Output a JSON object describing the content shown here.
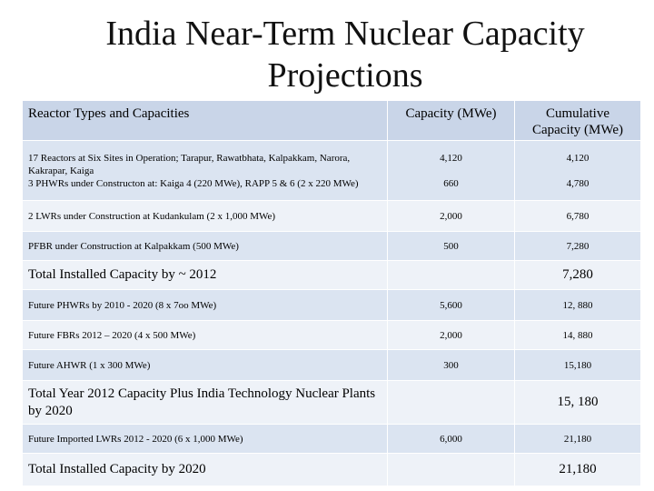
{
  "title": "India Near-Term Nuclear Capacity Projections",
  "table": {
    "headers": [
      "Reactor Types and Capacities",
      "Capacity (MWe)",
      "Cumulative Capacity (MWe)"
    ],
    "rows": [
      {
        "lines": [
          {
            "desc": "17 Reactors at Six Sites in Operation; Tarapur, Rawatbhata, Kalpakkam, Narora, Kakrapar, Kaiga",
            "capacity": "4,120",
            "cumulative": "4,120"
          },
          {
            "desc": "3 PHWRs under Constructon at: Kaiga 4 (220 MWe), RAPP 5 & 6 (2 x 220 MWe)",
            "capacity": "660",
            "cumulative": "4,780"
          }
        ]
      },
      {
        "desc": "2 LWRs under Construction at Kudankulam (2 x 1,000 MWe)",
        "capacity": "2,000",
        "cumulative": "6,780"
      },
      {
        "desc": "PFBR under Construction at Kalpakkam (500 MWe)",
        "capacity": "500",
        "cumulative": "7,280"
      },
      {
        "desc": "Total Installed Capacity by ~ 2012",
        "capacity": "",
        "cumulative": "7,280"
      },
      {
        "desc": "Future PHWRs by 2010 - 2020 (8 x 7oo MWe)",
        "capacity": "5,600",
        "cumulative": "12, 880"
      },
      {
        "desc": "Future FBRs 2012 – 2020 (4 x 500 MWe)",
        "capacity": "2,000",
        "cumulative": "14, 880"
      },
      {
        "desc": "Future AHWR (1 x 300 MWe)",
        "capacity": "300",
        "cumulative": "15,180"
      },
      {
        "desc": "Total Year 2012 Capacity Plus India Technology Nuclear Plants by 2020",
        "capacity": "",
        "cumulative": "15, 180"
      },
      {
        "desc": "Future Imported LWRs 2012 - 2020 (6 x 1,000 MWe)",
        "capacity": "6,000",
        "cumulative": "21,180"
      },
      {
        "desc": "Total Installed Capacity by 2020",
        "capacity": "",
        "cumulative": "21,180"
      }
    ]
  }
}
